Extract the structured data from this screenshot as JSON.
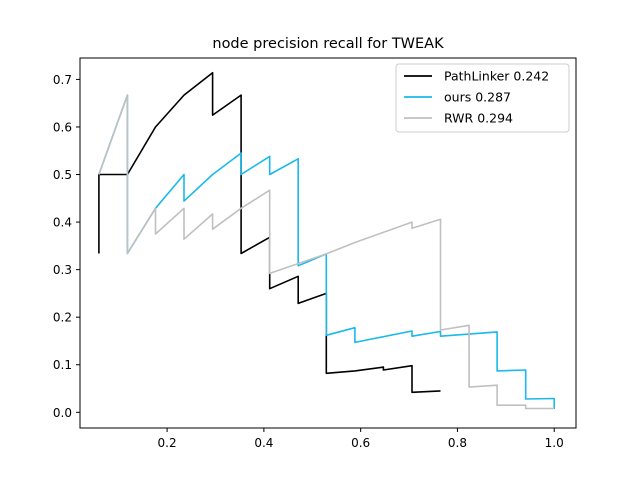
{
  "chart_data": {
    "type": "line",
    "title": "node precision recall for TWEAK",
    "xlabel": "",
    "ylabel": "",
    "xlim": [
      0.02,
      1.045
    ],
    "ylim": [
      -0.033,
      0.745
    ],
    "xticks": [
      0.2,
      0.4,
      0.6,
      0.8,
      1.0
    ],
    "xtick_labels": [
      "0.2",
      "0.4",
      "0.6",
      "0.8",
      "1.0"
    ],
    "yticks": [
      0.0,
      0.1,
      0.2,
      0.3,
      0.4,
      0.5,
      0.6,
      0.7
    ],
    "ytick_labels": [
      "0.0",
      "0.1",
      "0.2",
      "0.3",
      "0.4",
      "0.5",
      "0.6",
      "0.7"
    ],
    "grid": false,
    "legend_position": "top-right",
    "series": [
      {
        "name": "PathLinker 0.242",
        "color": "#000000",
        "x": [
          0.059,
          0.059,
          0.118,
          0.176,
          0.235,
          0.294,
          0.294,
          0.353,
          0.353,
          0.412,
          0.412,
          0.471,
          0.471,
          0.529,
          0.529,
          0.588,
          0.588,
          0.647,
          0.647,
          0.706,
          0.706,
          0.765
        ],
        "y": [
          0.334,
          0.5,
          0.5,
          0.6,
          0.667,
          0.714,
          0.625,
          0.667,
          0.334,
          0.368,
          0.26,
          0.286,
          0.229,
          0.25,
          0.082,
          0.087,
          0.087,
          0.095,
          0.089,
          0.098,
          0.042,
          0.045
        ]
      },
      {
        "name": "ours 0.287",
        "color": "#1ab9ea",
        "x": [
          0.059,
          0.118,
          0.118,
          0.176,
          0.235,
          0.235,
          0.294,
          0.353,
          0.353,
          0.412,
          0.412,
          0.471,
          0.471,
          0.529,
          0.529,
          0.588,
          0.588,
          0.706,
          0.706,
          0.765,
          0.765,
          0.882,
          0.882,
          0.941,
          0.941,
          1.0,
          1.0
        ],
        "y": [
          0.5,
          0.667,
          0.334,
          0.429,
          0.5,
          0.444,
          0.5,
          0.545,
          0.5,
          0.538,
          0.5,
          0.533,
          0.308,
          0.333,
          0.162,
          0.178,
          0.147,
          0.171,
          0.16,
          0.17,
          0.16,
          0.169,
          0.087,
          0.089,
          0.028,
          0.029,
          0.007
        ]
      },
      {
        "name": "RWR 0.294",
        "color": "#c0c0c0",
        "x": [
          0.059,
          0.118,
          0.118,
          0.176,
          0.176,
          0.235,
          0.235,
          0.294,
          0.294,
          0.353,
          0.412,
          0.412,
          0.529,
          0.588,
          0.706,
          0.706,
          0.765,
          0.765,
          0.824,
          0.824,
          0.882,
          0.882,
          0.941,
          0.941,
          1.0
        ],
        "y": [
          0.5,
          0.667,
          0.334,
          0.429,
          0.375,
          0.429,
          0.364,
          0.417,
          0.385,
          0.429,
          0.467,
          0.292,
          0.333,
          0.357,
          0.4,
          0.387,
          0.406,
          0.173,
          0.183,
          0.053,
          0.057,
          0.015,
          0.015,
          0.008,
          0.008
        ]
      }
    ]
  }
}
